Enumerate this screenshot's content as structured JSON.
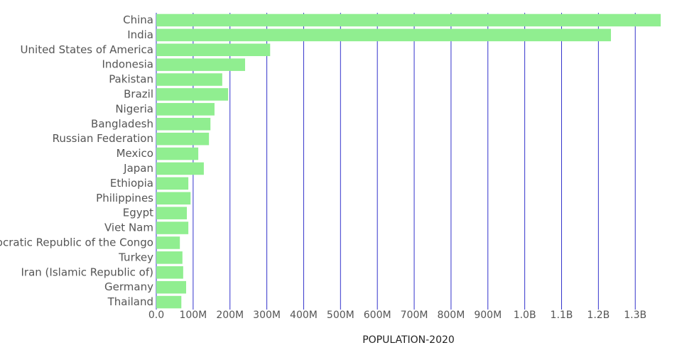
{
  "chart_data": {
    "type": "bar",
    "orientation": "horizontal",
    "x_label": "POPULATION-2020",
    "categories": [
      "China",
      "India",
      "United States of America",
      "Indonesia",
      "Pakistan",
      "Brazil",
      "Nigeria",
      "Bangladesh",
      "Russian Federation",
      "Mexico",
      "Japan",
      "Ethiopia",
      "Philippines",
      "Egypt",
      "Viet Nam",
      "Democratic Republic of the Congo",
      "Turkey",
      "Iran (Islamic Republic of)",
      "Germany",
      "Thailand"
    ],
    "values": [
      1369,
      1234,
      309,
      241,
      179,
      195,
      158,
      147,
      143,
      114,
      129,
      87,
      93,
      83,
      87,
      64,
      71,
      73,
      81,
      68
    ],
    "color": "#90ee90",
    "grid_color": "#3333cc",
    "xlim": [
      0,
      1369
    ],
    "xticks": [
      {
        "value": 0,
        "label": "0.0"
      },
      {
        "value": 100,
        "label": "100M"
      },
      {
        "value": 200,
        "label": "200M"
      },
      {
        "value": 300,
        "label": "300M"
      },
      {
        "value": 400,
        "label": "400M"
      },
      {
        "value": 500,
        "label": "500M"
      },
      {
        "value": 600,
        "label": "600M"
      },
      {
        "value": 700,
        "label": "700M"
      },
      {
        "value": 800,
        "label": "800M"
      },
      {
        "value": 900,
        "label": "900M"
      },
      {
        "value": 1000,
        "label": "1.0B"
      },
      {
        "value": 1100,
        "label": "1.1B"
      },
      {
        "value": 1200,
        "label": "1.2B"
      },
      {
        "value": 1300,
        "label": "1.3B"
      }
    ],
    "grid": true
  }
}
